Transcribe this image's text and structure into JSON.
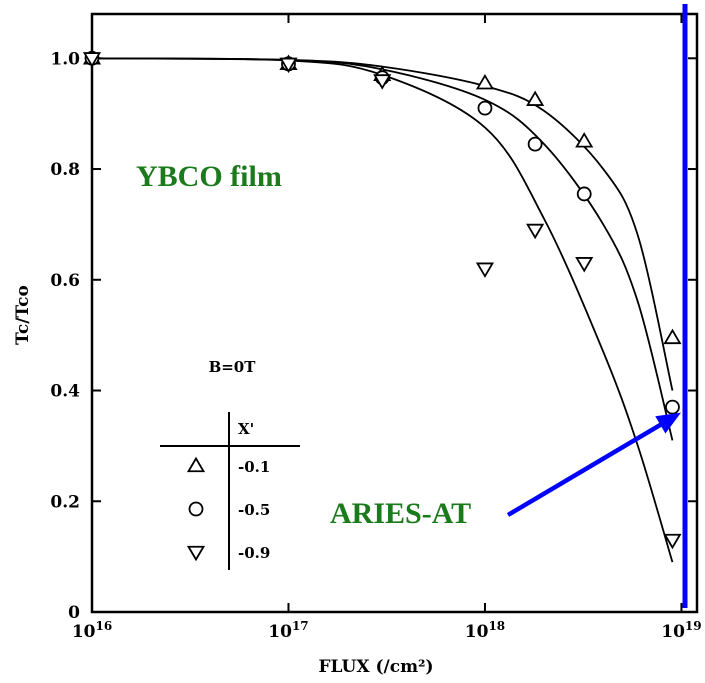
{
  "chart_data": {
    "type": "scatter",
    "title": "",
    "xlabel": "FLUX (/cm²)",
    "ylabel": "Tc/Tco",
    "x_scale": "log",
    "xlim": [
      1e+16,
      1.2e+19
    ],
    "ylim": [
      0,
      1.08
    ],
    "x_ticks": [
      {
        "value": 1e+16,
        "label_base": "10",
        "label_exp": "16"
      },
      {
        "value": 1e+17,
        "label_base": "10",
        "label_exp": "17"
      },
      {
        "value": 1e+18,
        "label_base": "10",
        "label_exp": "18"
      },
      {
        "value": 1e+19,
        "label_base": "10",
        "label_exp": "19"
      }
    ],
    "y_ticks": [
      {
        "value": 0,
        "label": "0"
      },
      {
        "value": 0.2,
        "label": "0.2"
      },
      {
        "value": 0.4,
        "label": "0.4"
      },
      {
        "value": 0.6,
        "label": "0.6"
      },
      {
        "value": 0.8,
        "label": "0.8"
      },
      {
        "value": 1.0,
        "label": "1.0"
      }
    ],
    "series": [
      {
        "name": "-0.1",
        "marker": "triangle-up",
        "x": [
          1e+16,
          1e+17,
          3e+17,
          1e+18,
          1.8e+18,
          3.2e+18,
          9e+18
        ],
        "y": [
          1.0,
          0.99,
          0.97,
          0.955,
          0.925,
          0.85,
          0.495
        ],
        "curve_x": [
          1e+16,
          1e+17,
          3e+17,
          1e+18,
          2e+18,
          4e+18,
          6e+18,
          9e+18
        ],
        "curve_y": [
          1.0,
          0.997,
          0.985,
          0.95,
          0.905,
          0.8,
          0.68,
          0.4
        ]
      },
      {
        "name": "-0.5",
        "marker": "circle",
        "x": [
          1e+16,
          1e+17,
          3e+17,
          1e+18,
          1.8e+18,
          3.2e+18,
          9e+18
        ],
        "y": [
          1.0,
          0.99,
          0.965,
          0.91,
          0.845,
          0.755,
          0.37
        ],
        "curve_x": [
          1e+16,
          1e+17,
          3e+17,
          1e+18,
          2e+18,
          4e+18,
          6e+18,
          9e+18
        ],
        "curve_y": [
          1.0,
          0.997,
          0.98,
          0.925,
          0.845,
          0.7,
          0.56,
          0.31
        ]
      },
      {
        "name": "-0.9",
        "marker": "triangle-down",
        "x": [
          1e+16,
          1e+17,
          3e+17,
          1e+18,
          1.8e+18,
          3.2e+18,
          9e+18
        ],
        "y": [
          1.0,
          0.99,
          0.96,
          0.62,
          0.69,
          0.63,
          0.13
        ],
        "curve_x": [
          1e+16,
          1e+17,
          3e+17,
          1e+18,
          2e+18,
          4e+18,
          6e+18,
          9e+18
        ],
        "curve_y": [
          1.0,
          0.996,
          0.97,
          0.875,
          0.71,
          0.47,
          0.3,
          0.09
        ]
      }
    ],
    "legend": {
      "title": "B=0T",
      "header": "X'",
      "placement": "lower-left"
    },
    "annotations": {
      "film_label": "YBCO film",
      "limit_label": "ARIES-AT",
      "limit_x": 1.15e+19,
      "arrow_target_y": 0.36
    },
    "colors": {
      "green_text": "#1b7a1b",
      "marker_line": "#0000ff",
      "axis": "#000000"
    }
  }
}
